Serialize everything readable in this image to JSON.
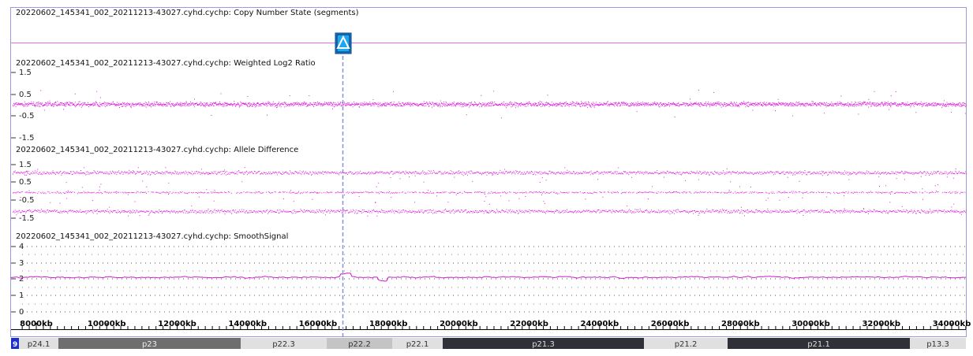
{
  "tracks": {
    "copy_number": {
      "title": "20220602_145341_002_20211213-43027.cyhd.cychp: Copy Number State (segments)"
    },
    "log2": {
      "title": "20220602_145341_002_20211213-43027.cyhd.cychp: Weighted Log2 Ratio",
      "ticks": [
        "1.5",
        "0.5",
        "-0.5",
        "-1.5"
      ]
    },
    "allele": {
      "title": "20220602_145341_002_20211213-43027.cyhd.cychp: Allele Difference",
      "ticks": [
        "1.5",
        "0.5",
        "-0.5",
        "-1.5"
      ]
    },
    "smooth": {
      "title": "20220602_145341_002_20211213-43027.cyhd.cychp: SmoothSignal",
      "ticks": [
        "4",
        "3",
        "2",
        "1",
        "0"
      ]
    }
  },
  "ruler": {
    "labels": [
      "8000kb",
      "10000kb",
      "12000kb",
      "14000kb",
      "16000kb",
      "18000kb",
      "20000kb",
      "22000kb",
      "24000kb",
      "26000kb",
      "28000kb",
      "30000kb",
      "32000kb",
      "34000kb"
    ]
  },
  "chromosome": {
    "number": "9",
    "bands": [
      {
        "label": "p24.1",
        "shade": "light"
      },
      {
        "label": "p23",
        "shade": "dark1"
      },
      {
        "label": "p22.3",
        "shade": "light"
      },
      {
        "label": "p22.2",
        "shade": "mid"
      },
      {
        "label": "p22.1",
        "shade": "light"
      },
      {
        "label": "p21.3",
        "shade": "dark2"
      },
      {
        "label": "p21.2",
        "shade": "light"
      },
      {
        "label": "p21.1",
        "shade": "dark2"
      },
      {
        "label": "p13.3",
        "shade": "light"
      }
    ]
  },
  "colors": {
    "data": "#e01ce0",
    "cursor": "#8a8fd8",
    "frame": "#9a9ae0",
    "marker": "#1a8fd6"
  },
  "cursor_marker": {
    "icon": "triangle-up-icon"
  }
}
